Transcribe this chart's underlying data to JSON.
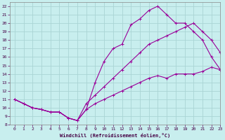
{
  "xlabel": "Windchill (Refroidissement éolien,°C)",
  "background_color": "#c8eeee",
  "grid_color": "#aad4d4",
  "line_color": "#990099",
  "line1_x": [
    0,
    1,
    2,
    3,
    4,
    5,
    6,
    7,
    8,
    9,
    10,
    11,
    12,
    13,
    14,
    15,
    16,
    17,
    18,
    19,
    20,
    21,
    22,
    23
  ],
  "line1_y": [
    11,
    10.5,
    10,
    9.8,
    9.5,
    9.5,
    8.8,
    8.5,
    9.8,
    13.0,
    15.5,
    17.0,
    17.5,
    19.8,
    20.5,
    21.5,
    22.0,
    21.0,
    20.0,
    20.0,
    19.0,
    18.0,
    16.0,
    14.5
  ],
  "line2_x": [
    0,
    1,
    2,
    3,
    4,
    5,
    6,
    7,
    8,
    9,
    10,
    11,
    12,
    13,
    14,
    15,
    16,
    17,
    18,
    19,
    20,
    21,
    22,
    23
  ],
  "line2_y": [
    11,
    10.5,
    10,
    9.8,
    9.5,
    9.5,
    8.8,
    8.5,
    10.5,
    11.5,
    12.5,
    13.5,
    14.5,
    15.5,
    16.5,
    17.5,
    18.0,
    18.5,
    19.0,
    19.5,
    20.0,
    19.0,
    18.0,
    16.5
  ],
  "line3_x": [
    0,
    1,
    2,
    3,
    4,
    5,
    6,
    7,
    8,
    9,
    10,
    11,
    12,
    13,
    14,
    15,
    16,
    17,
    18,
    19,
    20,
    21,
    22,
    23
  ],
  "line3_y": [
    11,
    10.5,
    10,
    9.8,
    9.5,
    9.5,
    8.8,
    8.5,
    9.8,
    10.5,
    11.0,
    11.5,
    12.0,
    12.5,
    13.0,
    13.5,
    13.8,
    13.5,
    14.0,
    14.0,
    14.0,
    14.3,
    14.8,
    14.5
  ],
  "xlim": [
    -0.5,
    23
  ],
  "ylim": [
    8,
    22.5
  ],
  "xticks": [
    0,
    1,
    2,
    3,
    4,
    5,
    6,
    7,
    8,
    9,
    10,
    11,
    12,
    13,
    14,
    15,
    16,
    17,
    18,
    19,
    20,
    21,
    22,
    23
  ],
  "yticks": [
    8,
    9,
    10,
    11,
    12,
    13,
    14,
    15,
    16,
    17,
    18,
    19,
    20,
    21,
    22
  ]
}
